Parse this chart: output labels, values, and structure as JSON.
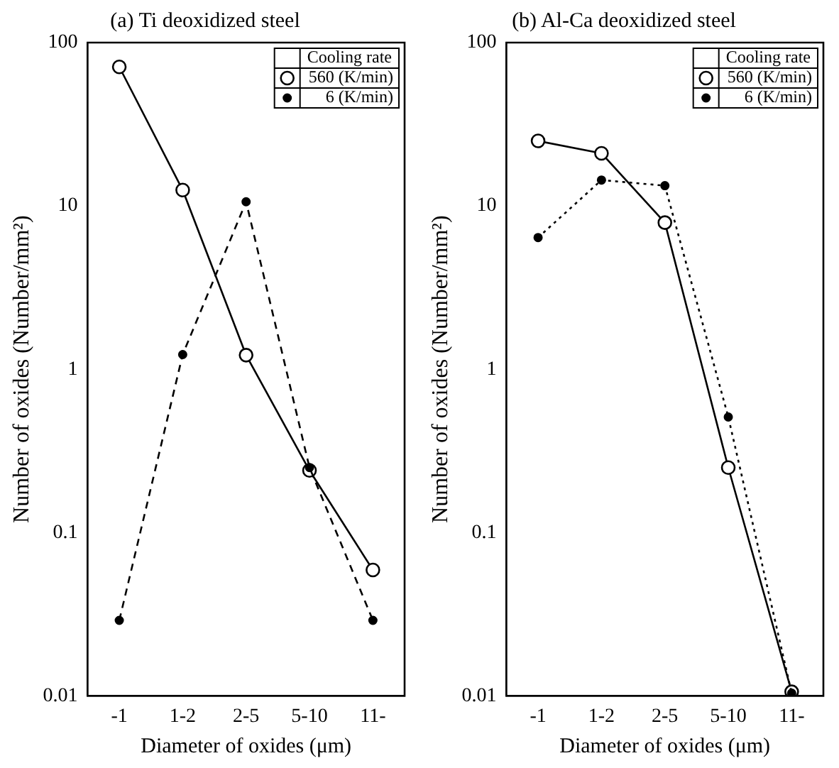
{
  "chart_data": [
    {
      "type": "line",
      "title": "(a) Ti deoxidized steel",
      "xlabel": "Diameter of oxides (μm)",
      "ylabel": "Number of oxides (Number/mm²)",
      "categories": [
        "-1",
        "1-2",
        "2-5",
        "5-10",
        "11-"
      ],
      "log": "y",
      "ylim": [
        0.01,
        100
      ],
      "yticks": [
        0.01,
        0.1,
        1,
        10,
        100
      ],
      "grid": false,
      "legend": "top right",
      "legend_title": "Cooling rate",
      "marker": "circle",
      "series": [
        {
          "name": "560 (K/min)",
          "color": "#000000",
          "line_style": "solid",
          "values": [
            71,
            12.5,
            1.22,
            0.24,
            0.059
          ]
        },
        {
          "name": "6 (K/min)",
          "color": "#000000",
          "line_style": "dashed",
          "values": [
            0.029,
            1.23,
            10.6,
            0.25,
            0.029
          ]
        }
      ]
    },
    {
      "type": "line",
      "title": "(b) Al-Ca deoxidized steel",
      "xlabel": "Diameter of oxides (μm)",
      "ylabel": "Number of oxides (Number/mm²)",
      "categories": [
        "-1",
        "1-2",
        "2-5",
        "5-10",
        "11-"
      ],
      "log": "y",
      "ylim": [
        0.01,
        100
      ],
      "yticks": [
        0.01,
        0.1,
        1,
        10,
        100
      ],
      "grid": false,
      "legend": "top right",
      "legend_title": "Cooling rate",
      "marker": "circle",
      "series": [
        {
          "name": "560 (K/min)",
          "color": "#000000",
          "line_style": "solid",
          "values": [
            25,
            21,
            7.9,
            0.25,
            0.0106
          ]
        },
        {
          "name": "6 (K/min)",
          "color": "#000000",
          "line_style": "dotted",
          "values": [
            6.4,
            14.4,
            13.3,
            0.51,
            0.0104
          ]
        }
      ]
    }
  ]
}
